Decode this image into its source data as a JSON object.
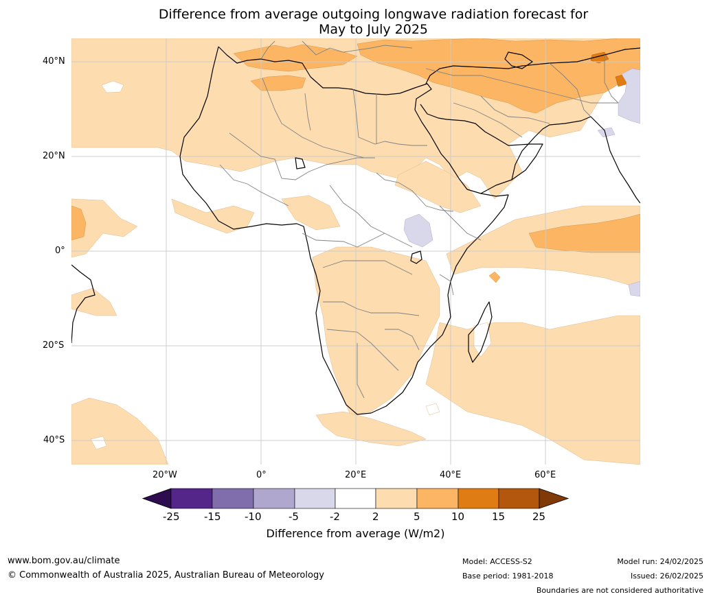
{
  "title_line1": "Difference from average outgoing longwave radiation forecast for",
  "title_line2": "May to July 2025",
  "lat_labels": [
    "40°N",
    "20°N",
    "0°",
    "20°S",
    "40°S"
  ],
  "lon_labels": [
    "20°W",
    "0°",
    "20°E",
    "40°E",
    "60°E"
  ],
  "colorbar": {
    "ticks": [
      "-25",
      "-15",
      "-10",
      "-5",
      "-2",
      "2",
      "5",
      "10",
      "15",
      "25"
    ],
    "colors": [
      "#2d0c4f",
      "#54268a",
      "#7f6dac",
      "#b0a7cf",
      "#d9d8ea",
      "#ffffff",
      "#fddcb0",
      "#fcb562",
      "#df7c13",
      "#b2570b",
      "#7f3a08"
    ],
    "label": "Difference from average (W/m2)"
  },
  "footer": {
    "url": "www.bom.gov.au/climate",
    "copyright": "© Commonwealth of Australia 2025, Australian Bureau of Meteorology",
    "model": "Model: ACCESS-S2",
    "base_period": "Base period: 1981-2018",
    "model_run": "Model run: 24/02/2025",
    "issued": "Issued: 26/02/2025",
    "disclaimer": "Boundaries are not considered authoritative"
  }
}
